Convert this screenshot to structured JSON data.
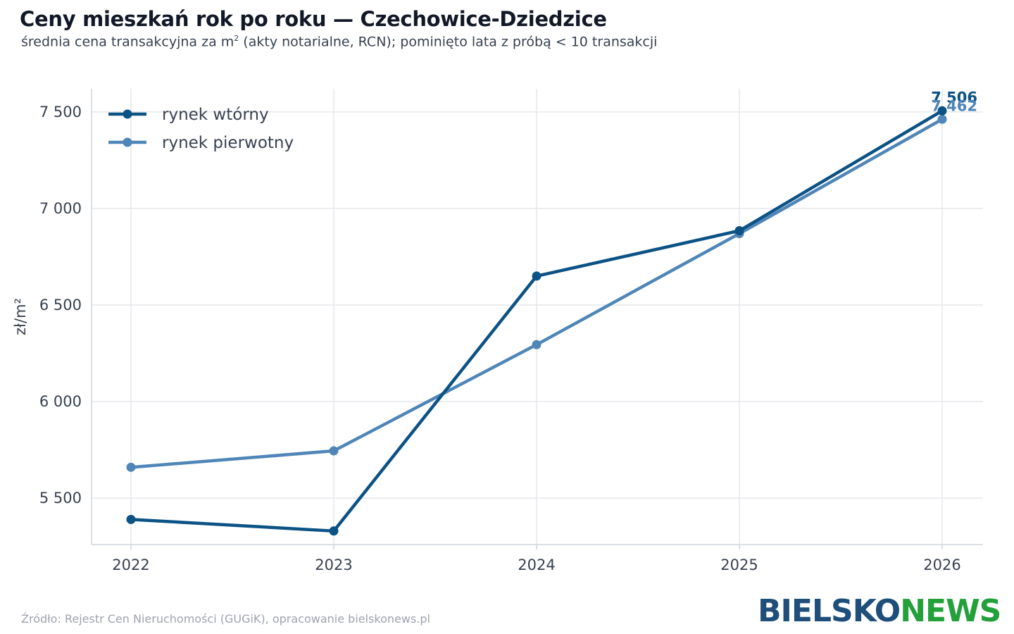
{
  "header": {
    "title": "Ceny mieszkań rok po roku — Czechowice-Dziedzice",
    "subtitle_pre": "średnia cena transakcyjna za m",
    "subtitle_sup": "2",
    "subtitle_post": " (akty notarialne, RCN); pominięto lata z próbą < 10 transakcji"
  },
  "footer": {
    "source": "Źródło: Rejestr Cen Nieruchomości (GUGiK), opracowanie bielskonews.pl",
    "logo_part1": "BIELSKO",
    "logo_part2": "NEWS"
  },
  "colors": {
    "secondary": "#0b5285",
    "primary": "#4f86b7",
    "grid": "#e5e7eb",
    "axis": "#d1d5db"
  },
  "chart_data": {
    "type": "line",
    "x": [
      "2022",
      "2023",
      "2024",
      "2025",
      "2026"
    ],
    "ylabel": "zł/m²",
    "xlabel": "",
    "ylim": [
      5260,
      7620
    ],
    "yticks": [
      5500,
      6000,
      6500,
      7000,
      7500
    ],
    "ytick_labels": [
      "5 500",
      "6 000",
      "6 500",
      "7 000",
      "7 500"
    ],
    "grid": true,
    "legend_position": "top-left",
    "series": [
      {
        "name": "rynek wtórny",
        "color": "#0b5285",
        "values": [
          5390,
          5330,
          6650,
          6885,
          7506
        ],
        "end_label": "7 506"
      },
      {
        "name": "rynek pierwotny",
        "color": "#4f86b7",
        "values": [
          5660,
          5745,
          6295,
          6870,
          7462
        ],
        "end_label": "7 462"
      }
    ]
  }
}
